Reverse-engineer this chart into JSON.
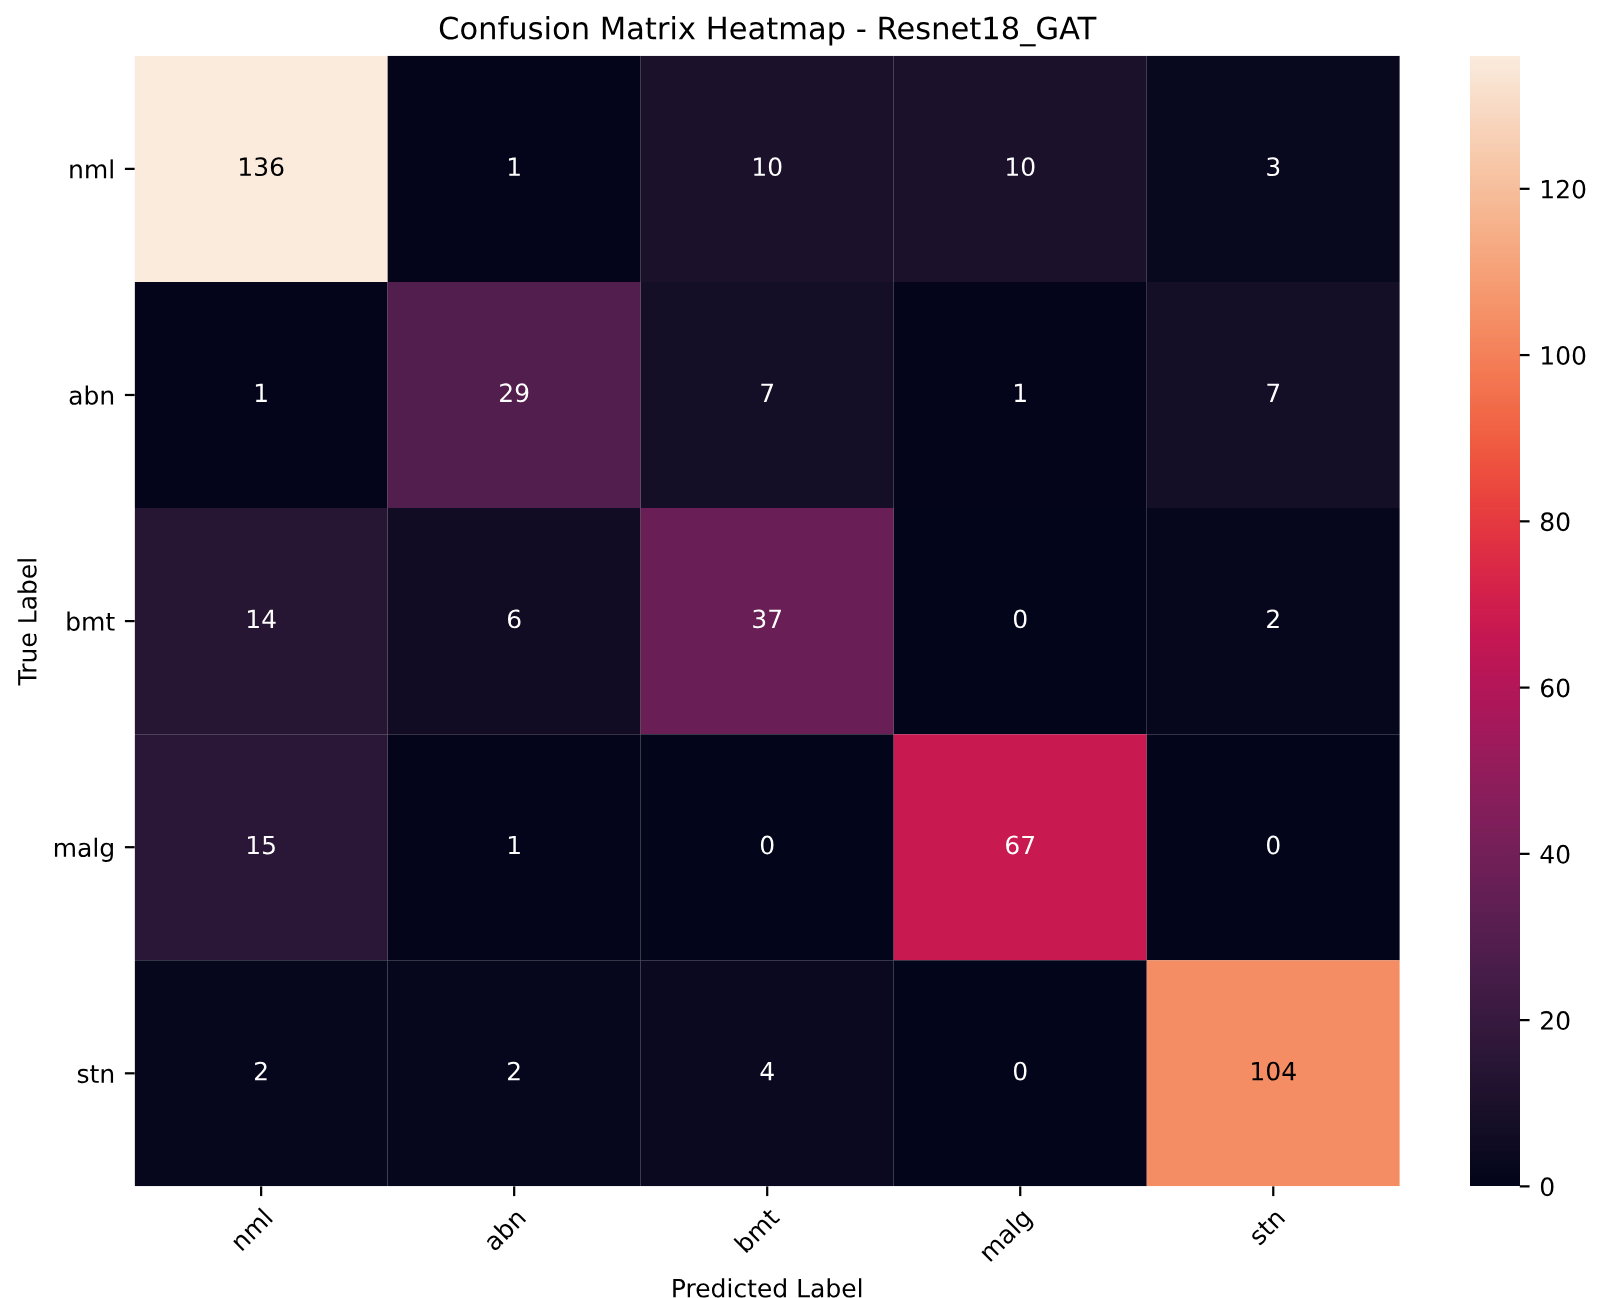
{
  "chart_data": {
    "type": "heatmap",
    "title": "Confusion Matrix Heatmap - Resnet18_GAT",
    "xlabel": "Predicted Label",
    "ylabel": "True Label",
    "categories": [
      "nml",
      "abn",
      "bmt",
      "malg",
      "stn"
    ],
    "y_categories": [
      "nml",
      "abn",
      "bmt",
      "malg",
      "stn"
    ],
    "cells": [
      [
        136,
        1,
        10,
        10,
        3
      ],
      [
        1,
        29,
        7,
        1,
        7
      ],
      [
        14,
        6,
        37,
        0,
        2
      ],
      [
        15,
        1,
        0,
        67,
        0
      ],
      [
        2,
        2,
        4,
        0,
        104
      ]
    ],
    "clim": [
      0,
      136
    ],
    "cticks": [
      0,
      20,
      40,
      60,
      80,
      100,
      120
    ],
    "data_labels": true
  }
}
